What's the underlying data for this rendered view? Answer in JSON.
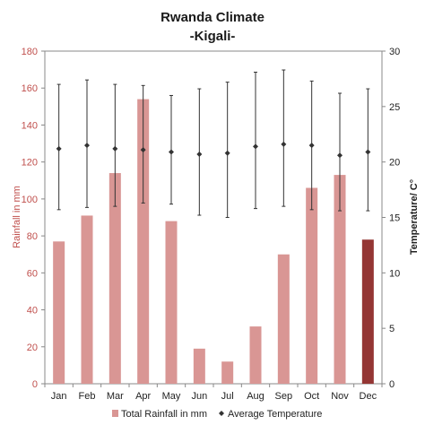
{
  "chart_data": {
    "type": "bar+errorline",
    "title": "Rwanda Climate",
    "subtitle": "-Kigali-",
    "categories": [
      "Jan",
      "Feb",
      "Mar",
      "Apr",
      "May",
      "Jun",
      "Jul",
      "Aug",
      "Sep",
      "Oct",
      "Nov",
      "Dec"
    ],
    "series": [
      {
        "name": "Total Rainfall in mm",
        "type": "bar",
        "axis": "left",
        "values": [
          77,
          91,
          114,
          154,
          88,
          19,
          12,
          31,
          70,
          106,
          113,
          78
        ],
        "color": "#d99694",
        "highlight_color": "#943634",
        "highlight_index": 11
      },
      {
        "name": "Average Temperature",
        "type": "point-range",
        "axis": "right",
        "values": [
          21.2,
          21.5,
          21.2,
          21.1,
          20.9,
          20.7,
          20.8,
          21.4,
          21.6,
          21.5,
          20.6,
          20.9
        ],
        "max": [
          27.0,
          27.4,
          27.0,
          26.9,
          26.0,
          26.6,
          27.2,
          28.1,
          28.3,
          27.3,
          26.2,
          26.6
        ],
        "min": [
          15.7,
          15.9,
          16.0,
          16.3,
          16.2,
          15.2,
          15.0,
          15.8,
          16.0,
          15.7,
          15.6,
          15.6
        ],
        "color": "#333333"
      }
    ],
    "ylabel": "Rainfall in mm",
    "y2label": "Temperature/ C°",
    "ylim": [
      0,
      180
    ],
    "y2lim": [
      0,
      30
    ],
    "yticks": [
      0,
      20,
      40,
      60,
      80,
      100,
      120,
      140,
      160,
      180
    ],
    "y2ticks": [
      0,
      5,
      10,
      15,
      20,
      25,
      30
    ],
    "grid": false,
    "legend_position": "bottom"
  }
}
